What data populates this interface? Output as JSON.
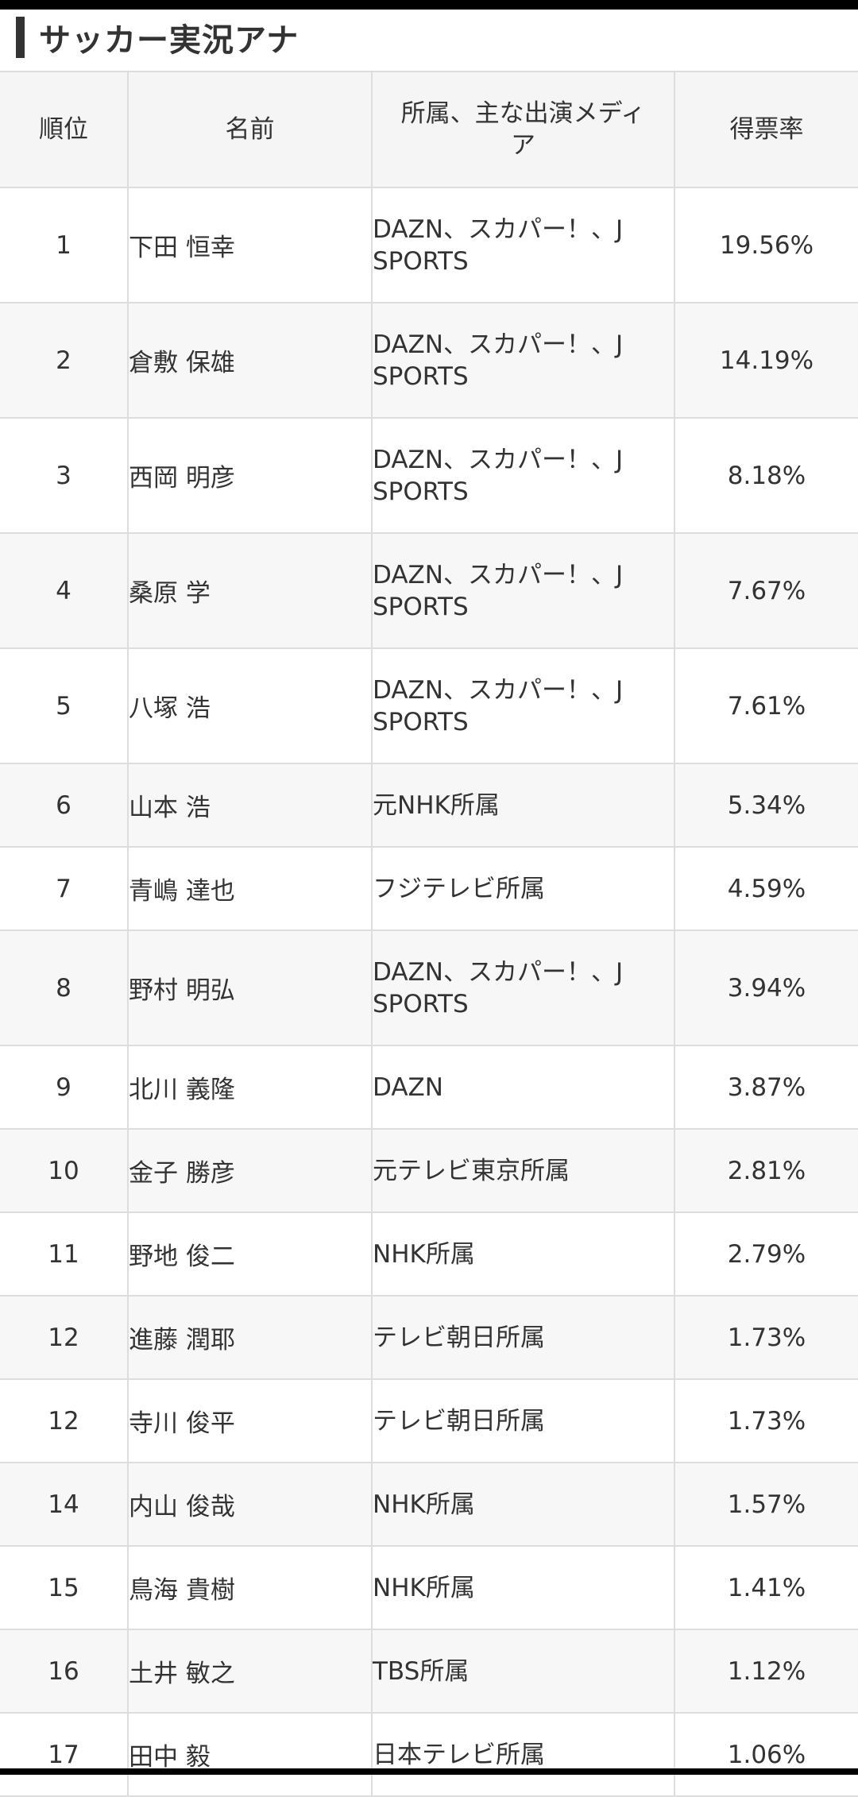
{
  "section": {
    "title": "サッカー実況アナ"
  },
  "table": {
    "headers": {
      "rank": "順位",
      "name": "名前",
      "media": "所属、主な出演メディア",
      "rate": "得票率"
    },
    "rows": [
      {
        "rank": "1",
        "name": "下田 恒幸",
        "media": "DAZN、スカパー！、J SPORTS",
        "rate": "19.56%"
      },
      {
        "rank": "2",
        "name": "倉敷 保雄",
        "media": "DAZN、スカパー！、J SPORTS",
        "rate": "14.19%"
      },
      {
        "rank": "3",
        "name": "西岡 明彦",
        "media": "DAZN、スカパー！、J SPORTS",
        "rate": "8.18%"
      },
      {
        "rank": "4",
        "name": "桑原 学",
        "media": "DAZN、スカパー！、J SPORTS",
        "rate": "7.67%"
      },
      {
        "rank": "5",
        "name": "八塚 浩",
        "media": "DAZN、スカパー！、J SPORTS",
        "rate": "7.61%"
      },
      {
        "rank": "6",
        "name": "山本 浩",
        "media": "元NHK所属",
        "rate": "5.34%"
      },
      {
        "rank": "7",
        "name": "青嶋 達也",
        "media": "フジテレビ所属",
        "rate": "4.59%"
      },
      {
        "rank": "8",
        "name": "野村 明弘",
        "media": "DAZN、スカパー！、J SPORTS",
        "rate": "3.94%"
      },
      {
        "rank": "9",
        "name": "北川 義隆",
        "media": "DAZN",
        "rate": "3.87%"
      },
      {
        "rank": "10",
        "name": "金子 勝彦",
        "media": "元テレビ東京所属",
        "rate": "2.81%"
      },
      {
        "rank": "11",
        "name": "野地 俊二",
        "media": "NHK所属",
        "rate": "2.79%"
      },
      {
        "rank": "12",
        "name": "進藤 潤耶",
        "media": "テレビ朝日所属",
        "rate": "1.73%"
      },
      {
        "rank": "12",
        "name": "寺川 俊平",
        "media": "テレビ朝日所属",
        "rate": "1.73%"
      },
      {
        "rank": "14",
        "name": "内山 俊哉",
        "media": "NHK所属",
        "rate": "1.57%"
      },
      {
        "rank": "15",
        "name": "鳥海 貴樹",
        "media": "NHK所属",
        "rate": "1.41%"
      },
      {
        "rank": "16",
        "name": "土井 敏之",
        "media": "TBS所属",
        "rate": "1.12%"
      },
      {
        "rank": "17",
        "name": "田中 毅",
        "media": "日本テレビ所属",
        "rate": "1.06%"
      }
    ]
  }
}
